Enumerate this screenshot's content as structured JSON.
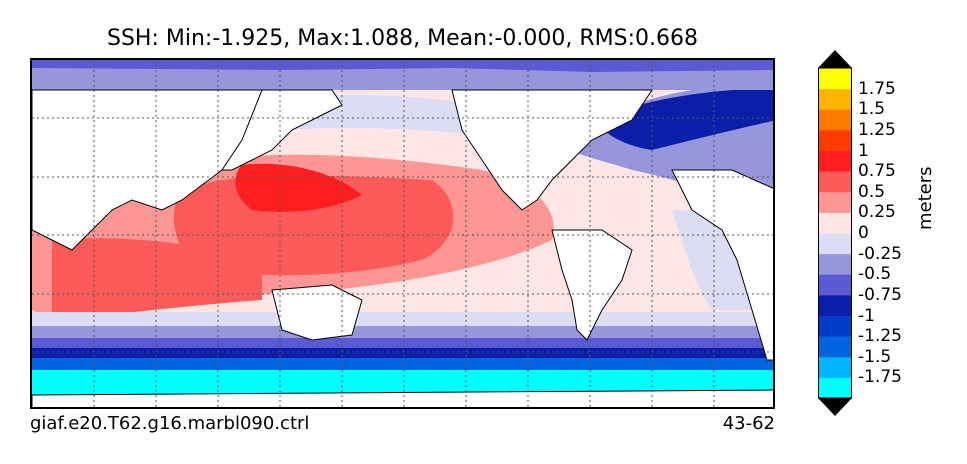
{
  "title": "SSH: Min:-1.925, Max:1.088, Mean:-0.000, RMS:0.668",
  "case_name": "giaf.e20.T62.g16.marbl090.ctrl",
  "years": "43-62",
  "colorbar": {
    "unit": "meters",
    "ticks": [
      "1.75",
      "1.5",
      "1.25",
      "1",
      "0.75",
      "0.5",
      "0.25",
      "0",
      "-0.25",
      "-0.5",
      "-0.75",
      "-1",
      "-1.25",
      "-1.5",
      "-1.75"
    ],
    "colors": [
      "#00ffff",
      "#00b4ff",
      "#0064e1",
      "#003cc8",
      "#0a1eaa",
      "#5a5ad2",
      "#9696dc",
      "#dcdcf5",
      "#ffe6e6",
      "#ff9696",
      "#ff5a5a",
      "#ff1e1e",
      "#ff3c00",
      "#ff7800",
      "#ffb400",
      "#ffff00"
    ],
    "extend_low": "#000000",
    "extend_high": "#000000"
  },
  "map": {
    "land_color": "#ffffff",
    "grid": "dotted",
    "projection": "global lat-lon"
  }
}
